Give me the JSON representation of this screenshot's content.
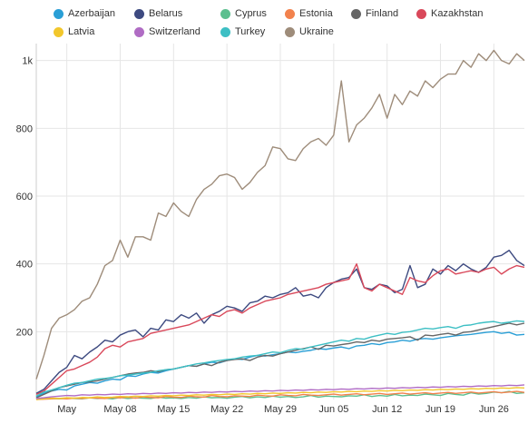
{
  "chart_data": {
    "type": "line",
    "title": "",
    "xlabel": "",
    "ylabel": "",
    "ylim": [
      0,
      1050
    ],
    "y_ticks": [
      {
        "value": 200,
        "label": "200"
      },
      {
        "value": 400,
        "label": "400"
      },
      {
        "value": 600,
        "label": "600"
      },
      {
        "value": 800,
        "label": "800"
      },
      {
        "value": 1000,
        "label": "1k"
      }
    ],
    "x_ticks": [
      {
        "day": 4,
        "label": "May"
      },
      {
        "day": 11,
        "label": "May 08"
      },
      {
        "day": 18,
        "label": "May 15"
      },
      {
        "day": 25,
        "label": "May 22"
      },
      {
        "day": 32,
        "label": "May 29"
      },
      {
        "day": 39,
        "label": "Jun 05"
      },
      {
        "day": 46,
        "label": "Jun 12"
      },
      {
        "day": 53,
        "label": "Jun 19"
      },
      {
        "day": 60,
        "label": "Jun 26"
      }
    ],
    "x_range": [
      0,
      64
    ],
    "grid": true,
    "legend_position": "top",
    "series": [
      {
        "name": "Azerbaijan",
        "color": "#2a9fd6",
        "values": [
          8,
          18,
          25,
          30,
          28,
          40,
          45,
          50,
          48,
          55,
          60,
          58,
          70,
          68,
          75,
          80,
          78,
          85,
          90,
          95,
          100,
          98,
          105,
          110,
          108,
          115,
          120,
          118,
          125,
          130,
          128,
          132,
          135,
          140,
          138,
          142,
          145,
          150,
          148,
          152,
          155,
          150,
          158,
          160,
          165,
          162,
          168,
          170,
          175,
          172,
          178,
          180,
          178,
          182,
          185,
          188,
          190,
          192,
          195,
          198,
          200,
          195,
          198,
          190,
          192
        ]
      },
      {
        "name": "Belarus",
        "color": "#3d4a80",
        "values": [
          18,
          30,
          55,
          80,
          95,
          130,
          120,
          140,
          155,
          175,
          170,
          190,
          200,
          205,
          185,
          210,
          205,
          235,
          230,
          250,
          240,
          255,
          225,
          250,
          260,
          275,
          270,
          260,
          285,
          290,
          305,
          300,
          310,
          315,
          330,
          305,
          310,
          300,
          330,
          345,
          355,
          360,
          385,
          330,
          325,
          340,
          335,
          315,
          325,
          395,
          330,
          340,
          385,
          370,
          395,
          380,
          400,
          385,
          375,
          390,
          420,
          425,
          440,
          410,
          395
        ]
      },
      {
        "name": "Cyprus",
        "color": "#5cbf8f",
        "values": [
          1,
          2,
          3,
          2,
          4,
          3,
          2,
          5,
          3,
          4,
          2,
          6,
          3,
          5,
          4,
          3,
          7,
          4,
          5,
          3,
          6,
          4,
          8,
          5,
          6,
          4,
          7,
          9,
          5,
          8,
          6,
          10,
          7,
          9,
          6,
          8,
          12,
          7,
          10,
          9,
          8,
          11,
          10,
          14,
          9,
          12,
          10,
          15,
          11,
          13,
          12,
          16,
          14,
          12,
          18,
          15,
          13,
          20,
          16,
          18,
          22,
          20,
          24,
          18,
          20
        ]
      },
      {
        "name": "Estonia",
        "color": "#f2824d",
        "values": [
          0,
          1,
          2,
          3,
          2,
          4,
          3,
          5,
          4,
          3,
          6,
          5,
          7,
          4,
          8,
          6,
          5,
          9,
          7,
          6,
          10,
          8,
          7,
          12,
          9,
          8,
          11,
          10,
          9,
          13,
          11,
          10,
          14,
          12,
          11,
          15,
          13,
          12,
          14,
          16,
          13,
          15,
          17,
          14,
          16,
          18,
          15,
          17,
          19,
          16,
          18,
          20,
          17,
          19,
          21,
          18,
          20,
          22,
          19,
          21,
          23,
          20,
          22,
          24,
          21
        ]
      },
      {
        "name": "Finland",
        "color": "#666666",
        "values": [
          5,
          15,
          25,
          35,
          40,
          45,
          50,
          52,
          55,
          60,
          65,
          70,
          75,
          78,
          80,
          85,
          82,
          88,
          90,
          95,
          100,
          98,
          105,
          100,
          110,
          115,
          118,
          120,
          115,
          125,
          130,
          128,
          135,
          140,
          145,
          150,
          155,
          148,
          160,
          158,
          162,
          165,
          170,
          168,
          175,
          172,
          178,
          180,
          182,
          185,
          175,
          190,
          188,
          192,
          195,
          190,
          198,
          200,
          205,
          210,
          215,
          220,
          225,
          220,
          225
        ]
      },
      {
        "name": "Kazakhstan",
        "color": "#d9485a",
        "values": [
          15,
          25,
          45,
          65,
          85,
          90,
          100,
          110,
          125,
          150,
          160,
          155,
          170,
          175,
          180,
          195,
          200,
          205,
          210,
          215,
          220,
          230,
          240,
          250,
          245,
          260,
          265,
          255,
          270,
          280,
          290,
          295,
          300,
          310,
          315,
          320,
          325,
          330,
          340,
          345,
          350,
          355,
          400,
          330,
          320,
          340,
          330,
          320,
          310,
          360,
          350,
          345,
          365,
          380,
          385,
          370,
          375,
          380,
          375,
          385,
          390,
          370,
          385,
          395,
          390
        ]
      },
      {
        "name": "Latvia",
        "color": "#f2c72c",
        "values": [
          0,
          2,
          4,
          3,
          5,
          4,
          6,
          5,
          8,
          6,
          7,
          9,
          8,
          10,
          9,
          11,
          10,
          12,
          11,
          13,
          12,
          14,
          13,
          15,
          14,
          16,
          15,
          17,
          16,
          18,
          17,
          19,
          18,
          20,
          19,
          21,
          20,
          22,
          21,
          23,
          22,
          24,
          23,
          25,
          24,
          26,
          25,
          27,
          26,
          28,
          27,
          29,
          28,
          30,
          29,
          31,
          30,
          32,
          31,
          33,
          32,
          34,
          33,
          35,
          34
        ]
      },
      {
        "name": "Switzerland",
        "color": "#b06cc4",
        "values": [
          3,
          5,
          8,
          10,
          12,
          11,
          14,
          13,
          15,
          14,
          16,
          15,
          17,
          16,
          18,
          17,
          19,
          18,
          20,
          19,
          21,
          20,
          22,
          21,
          23,
          22,
          24,
          23,
          25,
          24,
          26,
          25,
          27,
          26,
          28,
          27,
          29,
          28,
          30,
          29,
          31,
          30,
          32,
          31,
          33,
          32,
          34,
          33,
          35,
          34,
          36,
          35,
          37,
          36,
          38,
          37,
          39,
          38,
          40,
          39,
          41,
          40,
          42,
          41,
          43
        ]
      },
      {
        "name": "Turkey",
        "color": "#3dbfc4",
        "values": [
          10,
          22,
          28,
          35,
          42,
          48,
          50,
          55,
          60,
          62,
          65,
          70,
          72,
          75,
          78,
          80,
          85,
          88,
          90,
          95,
          100,
          105,
          108,
          112,
          115,
          118,
          120,
          125,
          128,
          130,
          135,
          140,
          138,
          145,
          150,
          148,
          155,
          160,
          165,
          170,
          175,
          172,
          180,
          178,
          185,
          190,
          195,
          192,
          198,
          200,
          205,
          210,
          208,
          212,
          215,
          210,
          218,
          220,
          225,
          228,
          230,
          225,
          228,
          232,
          230
        ]
      },
      {
        "name": "Ukraine",
        "color": "#9e8c7a",
        "values": [
          60,
          130,
          210,
          240,
          250,
          265,
          290,
          300,
          340,
          395,
          410,
          470,
          420,
          480,
          480,
          470,
          550,
          540,
          580,
          555,
          540,
          590,
          620,
          635,
          660,
          665,
          655,
          620,
          640,
          670,
          690,
          745,
          740,
          710,
          705,
          740,
          760,
          770,
          750,
          780,
          940,
          760,
          810,
          830,
          860,
          900,
          830,
          900,
          870,
          910,
          895,
          940,
          920,
          945,
          960,
          960,
          1000,
          980,
          1020,
          1000,
          1030,
          1000,
          990,
          1020,
          1000
        ]
      }
    ]
  }
}
